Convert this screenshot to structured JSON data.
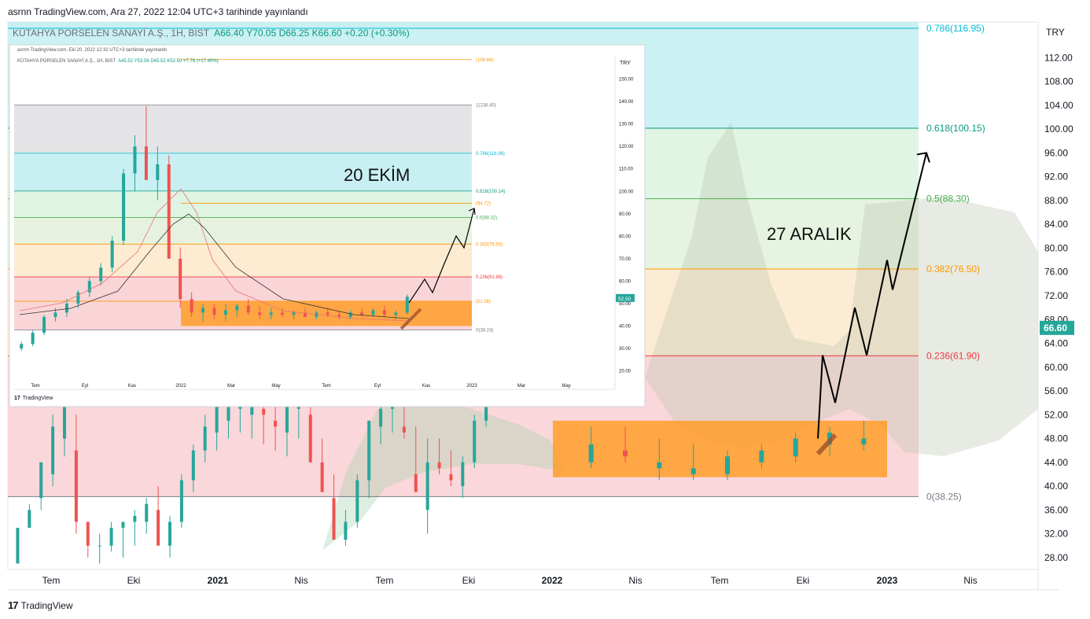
{
  "header": {
    "publish_text": "asrnn TradingView.com, Ara 27, 2022 12:04 UTC+3 tarihinde yayınlandı"
  },
  "symbol": {
    "name": "KÜTAHYA PORSELEN SANAYİ A.Ş., 1H, BIST",
    "ohlc": "A66.40 Y70.05 D66.25 K66.60 +0.20 (+0.30%)"
  },
  "footer": {
    "logo": "TradingView"
  },
  "colors": {
    "up": "#26a69a",
    "down": "#ef5350",
    "accent": "#2962ff"
  },
  "chart_data": [
    {
      "type": "candlestick",
      "currency": "TRY",
      "y_axis": {
        "ticks": [
          28,
          32,
          36,
          40,
          44,
          48,
          52,
          56,
          60,
          64,
          68,
          72,
          76,
          80,
          84,
          88,
          92,
          96,
          100,
          104,
          108,
          112
        ],
        "tick_labels": [
          "28.00",
          "32.00",
          "36.00",
          "40.00",
          "44.00",
          "48.00",
          "52.00",
          "56.00",
          "60.00",
          "64.00",
          "68.00",
          "72.00",
          "76.00",
          "80.00",
          "84.00",
          "88.00",
          "92.00",
          "96.00",
          "100.00",
          "104.00",
          "108.00",
          "112.00"
        ],
        "range": [
          26,
          118
        ]
      },
      "x_axis": {
        "labels": [
          "Tem",
          "Eki",
          "2021",
          "Nis",
          "Tem",
          "Eki",
          "2022",
          "Nis",
          "Tem",
          "Eki",
          "2023",
          "Nis"
        ]
      },
      "last_price": "66.60",
      "fib_levels": [
        {
          "label": "0.786(116.95)",
          "value": 116.95,
          "color": "#00bcd4"
        },
        {
          "label": "0.618(100.15)",
          "value": 100.15,
          "color": "#089981"
        },
        {
          "label": "0.5(88.30)",
          "value": 88.3,
          "color": "#4caf50"
        },
        {
          "label": "0.382(76.50)",
          "value": 76.5,
          "color": "#ff9800"
        },
        {
          "label": "0.236(61.90)",
          "value": 61.9,
          "color": "#f23645"
        },
        {
          "label": "0(38.25)",
          "value": 38.25,
          "color": "#787b86"
        }
      ],
      "annotation": "27 ARALIK",
      "consolidation_box": {
        "low": 41.5,
        "high": 51
      },
      "projection": [
        [
          1040,
          48
        ],
        [
          1046,
          62
        ],
        [
          1062,
          54
        ],
        [
          1087,
          70
        ],
        [
          1102,
          62
        ],
        [
          1128,
          78
        ],
        [
          1135,
          73
        ],
        [
          1178,
          96
        ]
      ],
      "series": [
        {
          "name": "",
          "values": [
            [
              20,
              27,
              33,
              27,
              33
            ],
            [
              33,
              33,
              37,
              35,
              36
            ],
            [
              36,
              38,
              44,
              36,
              44
            ],
            [
              44,
              42,
              52,
              40,
              50
            ],
            [
              50,
              48,
              57,
              45,
              56
            ],
            [
              56,
              46,
              52,
              32,
              34
            ],
            [
              34,
              34,
              34,
              28,
              30
            ],
            [
              30,
              30,
              32,
              27,
              30
            ],
            [
              30,
              30,
              34,
              29,
              33
            ],
            [
              33,
              33,
              34,
              28,
              34
            ],
            [
              34,
              34,
              36,
              30,
              35
            ],
            [
              35,
              34,
              38,
              32,
              37
            ],
            [
              37,
              36,
              40,
              34,
              30
            ],
            [
              30,
              30,
              35,
              28,
              34
            ],
            [
              34,
              34,
              42,
              33,
              41
            ],
            [
              41,
              41,
              47,
              39,
              46
            ],
            [
              46,
              46,
              52,
              44,
              50
            ],
            [
              50,
              49,
              57,
              46,
              55
            ],
            [
              55,
              51,
              58,
              48,
              55
            ],
            [
              55,
              53,
              59,
              49,
              57
            ],
            [
              57,
              52,
              58,
              48,
              54
            ],
            [
              54,
              53,
              57,
              47,
              52
            ],
            [
              52,
              51,
              55,
              46,
              50
            ],
            [
              50,
              49,
              56,
              45,
              54
            ],
            [
              54,
              53,
              58,
              48,
              56
            ],
            [
              56,
              52,
              57,
              47,
              44
            ],
            [
              44,
              44,
              48,
              40,
              39
            ],
            [
              39,
              38,
              42,
              34,
              31
            ],
            [
              31,
              31,
              36,
              30,
              34
            ],
            [
              34,
              34,
              42,
              33,
              41
            ],
            [
              41,
              41,
              47,
              38,
              51
            ],
            [
              51,
              50,
              55,
              47,
              53
            ],
            [
              53,
              53,
              56,
              49,
              54
            ],
            [
              54,
              50,
              56,
              48,
              49
            ],
            [
              49,
              42,
              50,
              40,
              39
            ],
            [
              39,
              36,
              48,
              32,
              44
            ],
            [
              44,
              44,
              48,
              42,
              43
            ],
            [
              43,
              42,
              46,
              40,
              41
            ],
            [
              41,
              40,
              45,
              38,
              44
            ],
            [
              44,
              44,
              52,
              43,
              51
            ],
            [
              51,
              51,
              60,
              50,
              58
            ],
            [
              58,
              56,
              64,
              55,
              62
            ],
            [
              62,
              61,
              66,
              60,
              64
            ],
            [
              64,
              60,
              68,
              58,
              66
            ],
            [
              66,
              66,
              70,
              64,
              66
            ],
            [
              66,
              66,
              70,
              64,
              66
            ]
          ]
        },
        {
          "name": "",
          "values": [
            [
              46,
              44,
              50,
              43,
              47
            ],
            [
              47,
              46,
              50,
              44,
              45
            ],
            [
              45,
              43,
              48,
              41,
              44
            ],
            [
              44,
              42,
              47,
              41,
              43
            ],
            [
              43,
              42,
              46,
              41,
              45
            ],
            [
              45,
              44,
              47,
              43,
              46
            ],
            [
              46,
              45,
              49,
              44,
              48
            ],
            [
              48,
              47,
              50,
              45,
              49
            ],
            [
              49,
              47,
              51,
              46,
              48
            ]
          ]
        }
      ]
    },
    {
      "type": "candlestick",
      "inset": true,
      "publish_text": "asrnn TradingView.com, Eki 20, 2022 12:32 UTC+3 tarihinde yayınlandı",
      "symbol_text": "KÜTAHYA PORSELEN SANAYİ A.Ş., 1H, BIST",
      "ohlc_text": "A45.52 Y53.56 D45.52 K52.50 +7.78 (+17.40%)",
      "currency": "TRY",
      "y_axis": {
        "ticks": [
          20,
          30,
          40,
          50,
          60,
          70,
          80,
          90,
          100,
          110,
          120,
          130,
          140,
          150
        ],
        "tick_labels": [
          "20.00",
          "30.00",
          "40.00",
          "50.00",
          "60.00",
          "70.00",
          "80.00",
          "90.00",
          "100.00",
          "110.00",
          "120.00",
          "130.00",
          "140.00",
          "150.00"
        ],
        "range": [
          16,
          160
        ]
      },
      "x_axis": {
        "labels": [
          "Tem",
          "Eyl",
          "Kas",
          "2022",
          "Mar",
          "May",
          "Tem",
          "Eyl",
          "Kas",
          "2023",
          "Mar",
          "May"
        ]
      },
      "last_price": "52.50",
      "fib_levels": [
        {
          "label": "(158.68)",
          "value": 158.68,
          "color": "#ff9800"
        },
        {
          "label": "1(138.40)",
          "value": 138.4,
          "color": "#787b86"
        },
        {
          "label": "0.786(116.96)",
          "value": 116.96,
          "color": "#00bcd4"
        },
        {
          "label": "0.618(100.14)",
          "value": 100.14,
          "color": "#089981"
        },
        {
          "label": "(94.72)",
          "value": 94.72,
          "color": "#ff9800"
        },
        {
          "label": "0.5(88.32)",
          "value": 88.32,
          "color": "#4caf50"
        },
        {
          "label": "0.382(76.50)",
          "value": 76.5,
          "color": "#ff9800"
        },
        {
          "label": "0.236(61.88)",
          "value": 61.88,
          "color": "#f23645"
        },
        {
          "label": "(51.06)",
          "value": 51.06,
          "color": "#ff9800"
        },
        {
          "label": "0(38.24)",
          "value": 38.24,
          "color": "#787b86"
        }
      ],
      "annotation": "20 EKİM",
      "inset_footer": "TradingView"
    }
  ]
}
